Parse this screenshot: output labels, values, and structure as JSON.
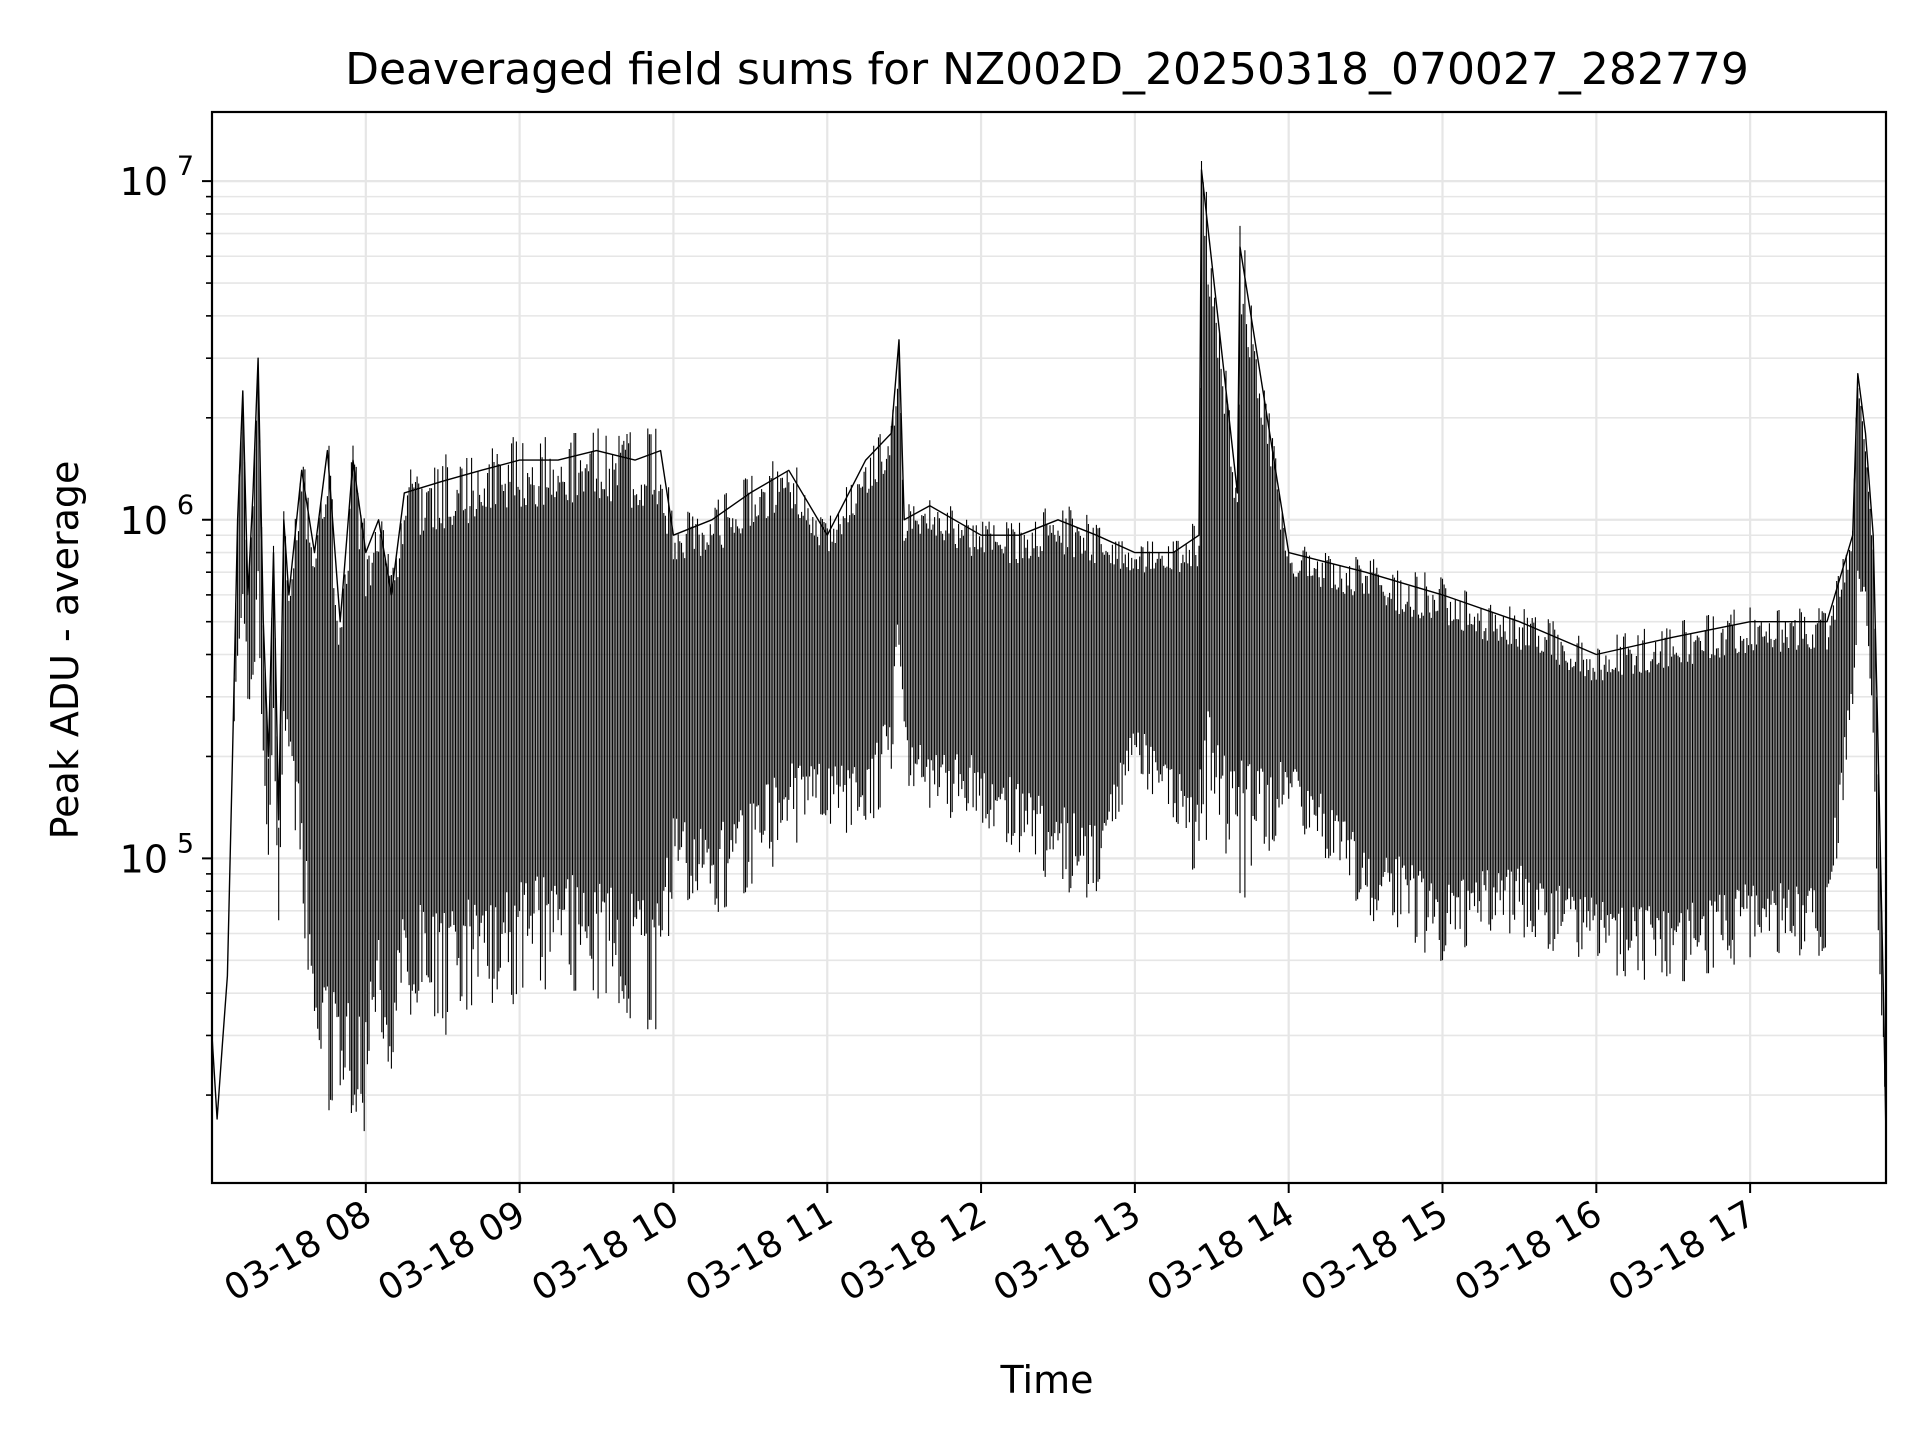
{
  "chart_data": {
    "type": "line",
    "title": "Deaveraged field sums for NZ002D_20250318_070027_282779",
    "xlabel": "Time",
    "ylabel": "Peak ADU - average",
    "x_axis": {
      "kind": "datetime",
      "range": [
        "2025-03-18 07:00",
        "2025-03-18 17:53"
      ],
      "ticks": [
        "03-18 08",
        "03-18 09",
        "03-18 10",
        "03-18 11",
        "03-18 12",
        "03-18 13",
        "03-18 14",
        "03-18 15",
        "03-18 16",
        "03-18 17"
      ],
      "tick_rotation_deg": 30
    },
    "y_axis": {
      "scale": "log",
      "range": [
        11000,
        16000000
      ],
      "ticks": [
        {
          "value": 100000,
          "base": "10",
          "exp": "5"
        },
        {
          "value": 1000000,
          "base": "10",
          "exp": "6"
        },
        {
          "value": 10000000,
          "base": "10",
          "exp": "7"
        }
      ]
    },
    "grid": true,
    "legend": "none",
    "colors": {
      "line": "#000000",
      "grid": "#e6e6e6",
      "axes": "#000000",
      "background": "#ffffff"
    },
    "series": [
      {
        "x": [
          "2025-03-18 07:00",
          "2025-03-18 07:02",
          "2025-03-18 07:04",
          "2025-03-18 07:06",
          "2025-03-18 07:08",
          "2025-03-18 07:10",
          "2025-03-18 07:12",
          "2025-03-18 07:14",
          "2025-03-18 07:16",
          "2025-03-18 07:18",
          "2025-03-18 07:20",
          "2025-03-18 07:22",
          "2025-03-18 07:24",
          "2025-03-18 07:26",
          "2025-03-18 07:28",
          "2025-03-18 07:30",
          "2025-03-18 07:35",
          "2025-03-18 07:40",
          "2025-03-18 07:45",
          "2025-03-18 07:50",
          "2025-03-18 07:55",
          "2025-03-18 08:00",
          "2025-03-18 08:05",
          "2025-03-18 08:10",
          "2025-03-18 08:15",
          "2025-03-18 08:30",
          "2025-03-18 08:45",
          "2025-03-18 09:00",
          "2025-03-18 09:15",
          "2025-03-18 09:30",
          "2025-03-18 09:45",
          "2025-03-18 09:55",
          "2025-03-18 10:00",
          "2025-03-18 10:15",
          "2025-03-18 10:30",
          "2025-03-18 10:45",
          "2025-03-18 11:00",
          "2025-03-18 11:15",
          "2025-03-18 11:25",
          "2025-03-18 11:28",
          "2025-03-18 11:30",
          "2025-03-18 11:40",
          "2025-03-18 12:00",
          "2025-03-18 12:15",
          "2025-03-18 12:30",
          "2025-03-18 12:45",
          "2025-03-18 13:00",
          "2025-03-18 13:15",
          "2025-03-18 13:25",
          "2025-03-18 13:26",
          "2025-03-18 13:40",
          "2025-03-18 13:41",
          "2025-03-18 14:00",
          "2025-03-18 14:30",
          "2025-03-18 15:00",
          "2025-03-18 15:30",
          "2025-03-18 16:00",
          "2025-03-18 16:30",
          "2025-03-18 17:00",
          "2025-03-18 17:30",
          "2025-03-18 17:40",
          "2025-03-18 17:42",
          "2025-03-18 17:45",
          "2025-03-18 17:48",
          "2025-03-18 17:50",
          "2025-03-18 17:52",
          "2025-03-18 17:53"
        ],
        "y": [
          30000,
          17000,
          28000,
          45000,
          200000,
          1000000,
          2400000,
          600000,
          1200000,
          3000000,
          500000,
          200000,
          800000,
          130000,
          1000000,
          600000,
          1400000,
          800000,
          1600000,
          500000,
          1500000,
          800000,
          1000000,
          600000,
          1200000,
          1300000,
          1400000,
          1500000,
          1500000,
          1600000,
          1500000,
          1600000,
          900000,
          1000000,
          1200000,
          1400000,
          900000,
          1500000,
          1800000,
          3400000,
          1000000,
          1100000,
          900000,
          900000,
          1000000,
          900000,
          800000,
          800000,
          900000,
          10800000,
          1200000,
          6400000,
          800000,
          700000,
          600000,
          500000,
          400000,
          450000,
          500000,
          500000,
          900000,
          2700000,
          1800000,
          900000,
          200000,
          40000,
          15000
        ],
        "line_min": [
          30000,
          17000,
          28000,
          45000,
          200000,
          400000,
          600000,
          300000,
          300000,
          600000,
          200000,
          100000,
          300000,
          60000,
          300000,
          200000,
          100000,
          30000,
          25000,
          20000,
          22000,
          20000,
          40000,
          30000,
          45000,
          40000,
          45000,
          50000,
          55000,
          50000,
          45000,
          40000,
          100000,
          80000,
          100000,
          130000,
          150000,
          120000,
          200000,
          400000,
          200000,
          150000,
          150000,
          120000,
          100000,
          90000,
          200000,
          150000,
          100000,
          150000,
          120000,
          100000,
          150000,
          80000,
          60000,
          70000,
          55000,
          50000,
          60000,
          60000,
          300000,
          600000,
          500000,
          200000,
          50000,
          30000,
          15000
        ]
      }
    ]
  }
}
